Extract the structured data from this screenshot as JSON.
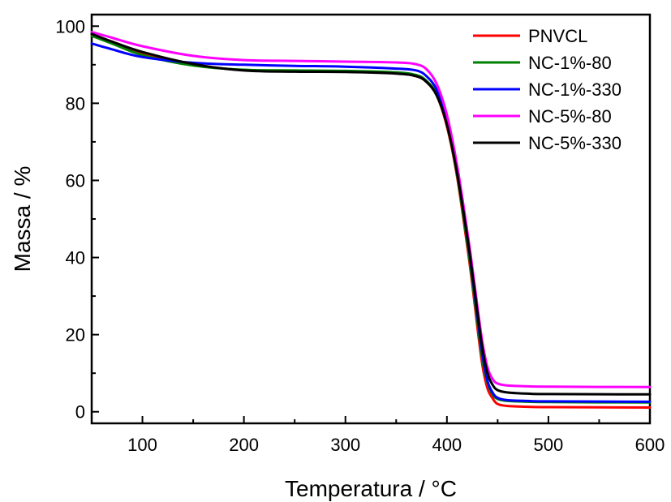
{
  "chart_data": {
    "type": "line",
    "xlabel": "Temperatura / °C",
    "ylabel": "Massa / %",
    "xlim": [
      50,
      600
    ],
    "ylim": [
      -3,
      103
    ],
    "xticks": [
      100,
      200,
      300,
      400,
      500,
      600
    ],
    "yticks": [
      0,
      20,
      40,
      60,
      80,
      100
    ],
    "grid": false,
    "legend_position": "top-right",
    "series": [
      {
        "name": "PNVCL",
        "color": "#ff0000",
        "x": [
          50,
          70,
          100,
          150,
          200,
          250,
          300,
          350,
          370,
          380,
          390,
          400,
          410,
          420,
          425,
          430,
          435,
          440,
          445,
          450,
          460,
          480,
          500,
          600
        ],
        "y": [
          97.5,
          96,
          93,
          90,
          88.6,
          88.3,
          88.2,
          87.8,
          87,
          85.5,
          82,
          74,
          61,
          43,
          33,
          22,
          12,
          6,
          3.5,
          2,
          1.5,
          1.3,
          1.2,
          1.1
        ]
      },
      {
        "name": "NC-1%-80",
        "color": "#008000",
        "x": [
          50,
          70,
          100,
          150,
          200,
          250,
          300,
          350,
          370,
          380,
          390,
          400,
          410,
          420,
          425,
          430,
          435,
          440,
          445,
          450,
          460,
          480,
          500,
          600
        ],
        "y": [
          97.5,
          95.5,
          92.5,
          89.8,
          88.7,
          88.5,
          88.4,
          88,
          87.3,
          85.8,
          82.3,
          74.5,
          61.5,
          44,
          34,
          23.5,
          13.5,
          7.5,
          4.5,
          3.3,
          2.8,
          2.6,
          2.5,
          2.4
        ]
      },
      {
        "name": "NC-1%-330",
        "color": "#0000ff",
        "x": [
          50,
          70,
          100,
          150,
          200,
          250,
          300,
          350,
          370,
          380,
          390,
          400,
          410,
          420,
          425,
          430,
          435,
          440,
          445,
          450,
          460,
          480,
          500,
          600
        ],
        "y": [
          95.5,
          94,
          92,
          90.5,
          90,
          89.7,
          89.5,
          89,
          88.5,
          87,
          83.5,
          76,
          63,
          45.5,
          35.5,
          25,
          15,
          8,
          5,
          3.6,
          3,
          2.8,
          2.7,
          2.6
        ]
      },
      {
        "name": "NC-5%-80",
        "color": "#ff00ff",
        "x": [
          50,
          70,
          100,
          150,
          200,
          250,
          300,
          350,
          370,
          380,
          390,
          400,
          410,
          420,
          425,
          430,
          435,
          440,
          445,
          450,
          460,
          480,
          500,
          600
        ],
        "y": [
          98.5,
          97,
          94.8,
          92.3,
          91.2,
          91,
          90.8,
          90.6,
          90.1,
          88.8,
          85,
          77,
          64,
          47,
          37.5,
          27.5,
          18,
          11.5,
          8.5,
          7.3,
          6.8,
          6.6,
          6.5,
          6.4
        ]
      },
      {
        "name": "NC-5%-330",
        "color": "#000000",
        "x": [
          50,
          70,
          100,
          150,
          200,
          250,
          300,
          350,
          370,
          380,
          390,
          400,
          410,
          420,
          425,
          430,
          435,
          440,
          445,
          450,
          460,
          480,
          500,
          600
        ],
        "y": [
          98,
          96,
          93.3,
          90.2,
          88.5,
          88.2,
          88.1,
          87.7,
          87,
          85.5,
          82,
          74.5,
          62,
          45.5,
          36,
          26,
          16.5,
          10,
          7,
          5.6,
          5,
          4.7,
          4.6,
          4.5
        ]
      }
    ]
  }
}
